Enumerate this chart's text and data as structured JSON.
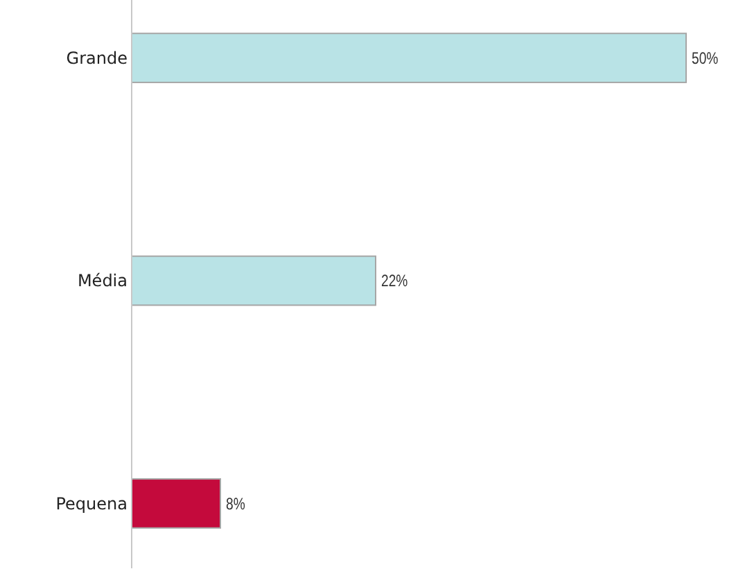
{
  "chart_data": {
    "type": "bar",
    "orientation": "horizontal",
    "categories": [
      "Grande",
      "Média",
      "Pequena"
    ],
    "values": [
      50,
      22,
      8
    ],
    "value_labels": [
      "50%",
      "22%",
      "8%"
    ],
    "colors": [
      "#b9e3e6",
      "#b9e3e6",
      "#c40a3c"
    ],
    "xlim": [
      0,
      50
    ]
  }
}
